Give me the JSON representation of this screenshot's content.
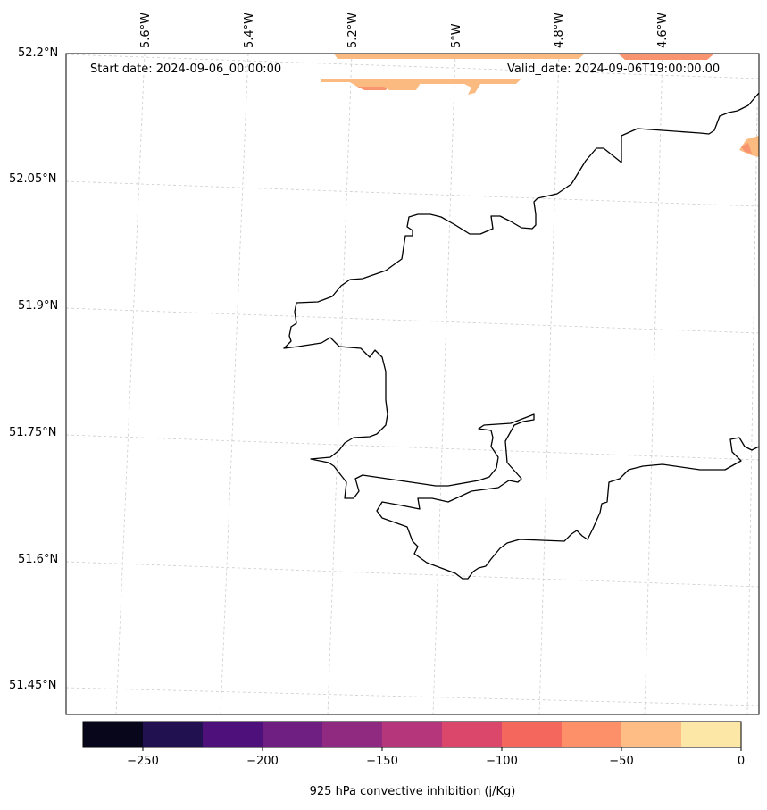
{
  "map": {
    "start_date_text": "Start date: 2024-09-06_00:00:00",
    "valid_date_text": "Valid_date: 2024-09-06T19:00:00.00",
    "longitude_labels": [
      "5.6°W",
      "5.4°W",
      "5.2°W",
      "5°W",
      "4.8°W",
      "4.6°W"
    ],
    "latitude_labels": [
      "52.2°N",
      "52.05°N",
      "51.9°N",
      "51.75°N",
      "51.6°N",
      "51.45°N"
    ],
    "gridlines": true,
    "gridline_color": "#cccccc",
    "coastline_color": "#000000",
    "field_colors": {
      "salmon": "#f89470",
      "peach": "#fbba7f"
    }
  },
  "colorbar": {
    "label": "925 hPa convective inhibition (j/Kg)",
    "tick_labels": [
      "−250",
      "−200",
      "−150",
      "−100",
      "−50",
      "0"
    ],
    "tick_values": [
      -250,
      -200,
      -150,
      -100,
      -50,
      0
    ],
    "range": [
      -275,
      0
    ],
    "bin_width": 25,
    "colors": [
      "#07061b",
      "#221150",
      "#4e117b",
      "#6f1f81",
      "#8f2a80",
      "#b5367a",
      "#db476a",
      "#f4675c",
      "#fd9068",
      "#fdbd84",
      "#fde7a7"
    ]
  }
}
